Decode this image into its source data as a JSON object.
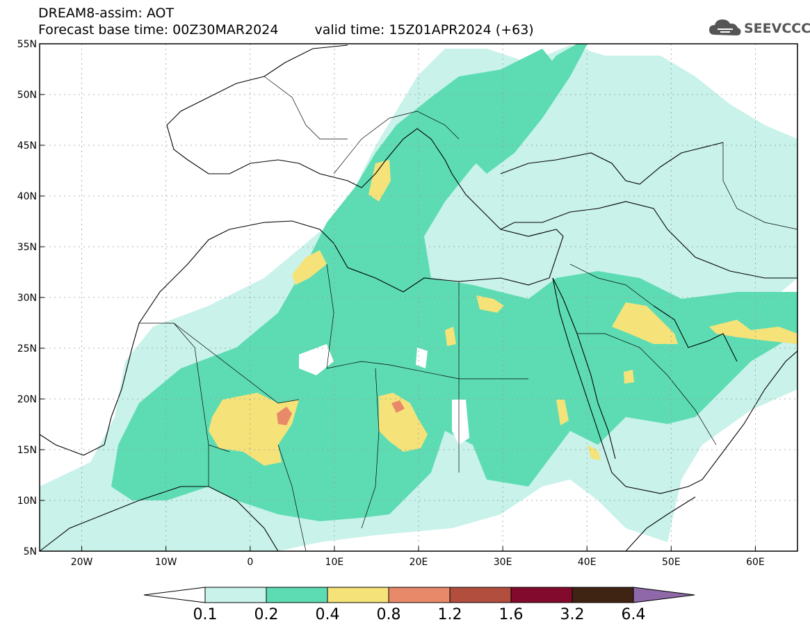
{
  "header": {
    "title": "DREAM8-assim: AOT",
    "base_time": "Forecast base time: 00Z30MAR2024",
    "valid_time": "valid time: 15Z01APR2024 (+63)",
    "logo_text": "SEEVCCC"
  },
  "map": {
    "lon_range": [
      -25,
      65
    ],
    "lat_range": [
      5,
      55
    ],
    "lon_ticks": [
      {
        "value": -20,
        "label": "20W"
      },
      {
        "value": -10,
        "label": "10W"
      },
      {
        "value": 0,
        "label": "0"
      },
      {
        "value": 10,
        "label": "10E"
      },
      {
        "value": 20,
        "label": "20E"
      },
      {
        "value": 30,
        "label": "30E"
      },
      {
        "value": 40,
        "label": "40E"
      },
      {
        "value": 50,
        "label": "50E"
      },
      {
        "value": 60,
        "label": "60E"
      }
    ],
    "lat_ticks": [
      {
        "value": 55,
        "label": "55N"
      },
      {
        "value": 50,
        "label": "50N"
      },
      {
        "value": 45,
        "label": "45N"
      },
      {
        "value": 40,
        "label": "40N"
      },
      {
        "value": 35,
        "label": "35N"
      },
      {
        "value": 30,
        "label": "30N"
      },
      {
        "value": 25,
        "label": "25N"
      },
      {
        "value": 20,
        "label": "20N"
      },
      {
        "value": 15,
        "label": "15N"
      },
      {
        "value": 10,
        "label": "10N"
      },
      {
        "value": 5,
        "label": "5N"
      }
    ],
    "grid": "dotted",
    "colors": {
      "0.1-0.2": "#c8f2ea",
      "0.2-0.4": "#5ddcb3",
      "0.4-0.8": "#f5e37a",
      "0.8-1.2": "#e8896a",
      "1.2-1.6": "#b14e3e",
      "1.6-3.2": "#820a2c",
      "3.2-6.4": "#3f2414",
      ">6.4": "#8e68a8"
    }
  },
  "colorbar": {
    "labels": [
      "0.1",
      "0.2",
      "0.4",
      "0.8",
      "1.2",
      "1.6",
      "3.2",
      "6.4"
    ],
    "colors": [
      "#c8f2ea",
      "#5ddcb3",
      "#f5e37a",
      "#e8896a",
      "#b14e3e",
      "#820a2c",
      "#3f2414"
    ],
    "low_color": "#ffffff",
    "high_color": "#8e68a8"
  }
}
